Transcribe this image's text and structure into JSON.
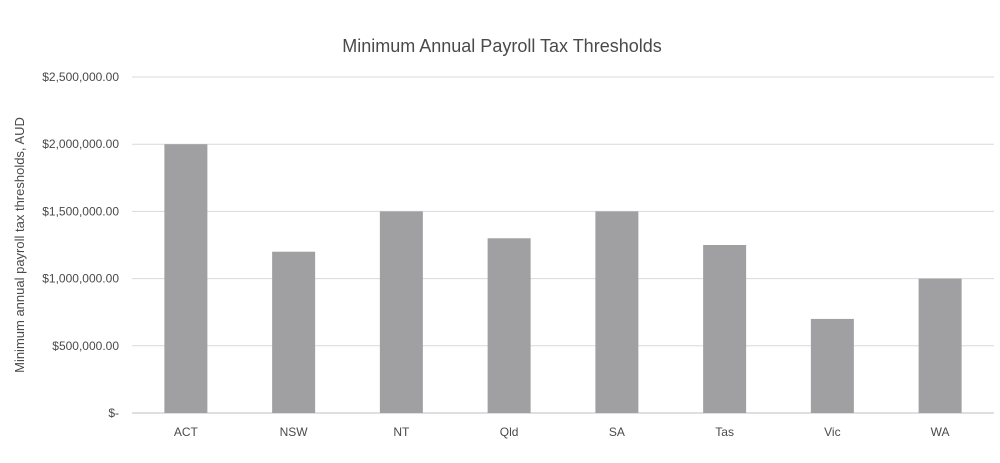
{
  "chart_data": {
    "type": "bar",
    "title": "Minimum Annual Payroll Tax Thresholds",
    "xlabel": "",
    "ylabel": "Minimum annual payroll tax thresholds, AUD",
    "categories": [
      "ACT",
      "NSW",
      "NT",
      "Qld",
      "SA",
      "Tas",
      "Vic",
      "WA"
    ],
    "values": [
      2000000,
      1200000,
      1500000,
      1300000,
      1500000,
      1250000,
      700000,
      1000000
    ],
    "ylim": [
      0,
      2500000
    ],
    "yticks": [
      0,
      500000,
      1000000,
      1500000,
      2000000,
      2500000
    ],
    "ytick_labels": [
      "$-",
      "$500,000.00",
      "$1,000,000.00",
      "$1,500,000.00",
      "$2,000,000.00",
      "$2,500,000.00"
    ],
    "grid": true,
    "legend": "none",
    "colors": {
      "bar": "#a0a0a2",
      "grid": "#d9d9d9",
      "text": "#4a4a4a"
    }
  }
}
